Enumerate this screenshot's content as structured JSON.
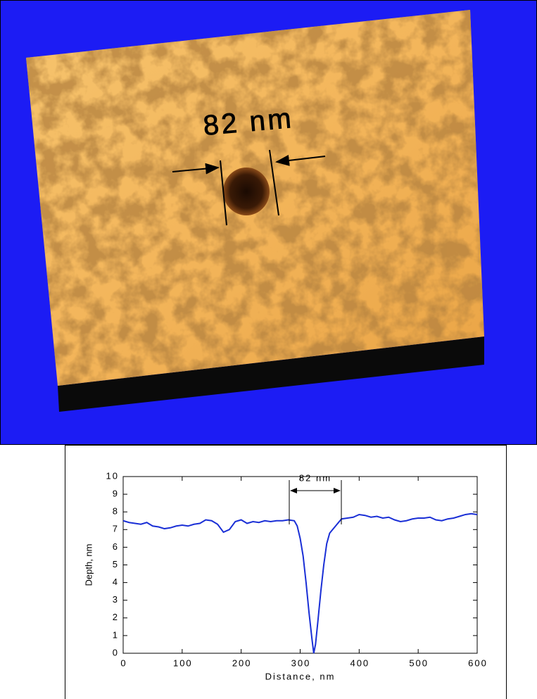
{
  "image": {
    "annotation": "82 nm"
  },
  "chart_data": {
    "type": "line",
    "x_label": "Distance, nm",
    "y_label": "Depth, nm",
    "annotation": "82 nm",
    "xlim": [
      0,
      600
    ],
    "ylim": [
      0,
      10
    ],
    "xticks": [
      0,
      100,
      200,
      300,
      400,
      500,
      600
    ],
    "yticks": [
      0,
      1,
      2,
      3,
      4,
      5,
      6,
      7,
      8,
      9,
      10
    ],
    "color": "#1a2fd6",
    "x": [
      0,
      10,
      20,
      30,
      40,
      50,
      60,
      70,
      80,
      90,
      100,
      110,
      120,
      130,
      140,
      150,
      160,
      170,
      180,
      190,
      200,
      210,
      220,
      230,
      240,
      250,
      260,
      270,
      280,
      290,
      295,
      300,
      305,
      310,
      315,
      320,
      323,
      326,
      330,
      335,
      340,
      345,
      350,
      360,
      370,
      380,
      390,
      400,
      410,
      420,
      430,
      440,
      450,
      460,
      470,
      480,
      490,
      500,
      510,
      520,
      530,
      540,
      550,
      560,
      570,
      580,
      590,
      600
    ],
    "values": [
      7.5,
      7.4,
      7.35,
      7.3,
      7.4,
      7.2,
      7.15,
      7.05,
      7.1,
      7.2,
      7.25,
      7.2,
      7.3,
      7.35,
      7.55,
      7.5,
      7.3,
      6.85,
      7.0,
      7.45,
      7.55,
      7.35,
      7.45,
      7.4,
      7.5,
      7.45,
      7.5,
      7.5,
      7.55,
      7.5,
      7.2,
      6.5,
      5.5,
      4.0,
      2.3,
      0.8,
      0.0,
      0.5,
      1.8,
      3.5,
      5.0,
      6.2,
      6.8,
      7.2,
      7.6,
      7.65,
      7.7,
      7.85,
      7.8,
      7.7,
      7.75,
      7.65,
      7.7,
      7.55,
      7.45,
      7.5,
      7.6,
      7.65,
      7.65,
      7.7,
      7.55,
      7.5,
      7.6,
      7.65,
      7.75,
      7.85,
      7.9,
      7.85
    ]
  }
}
